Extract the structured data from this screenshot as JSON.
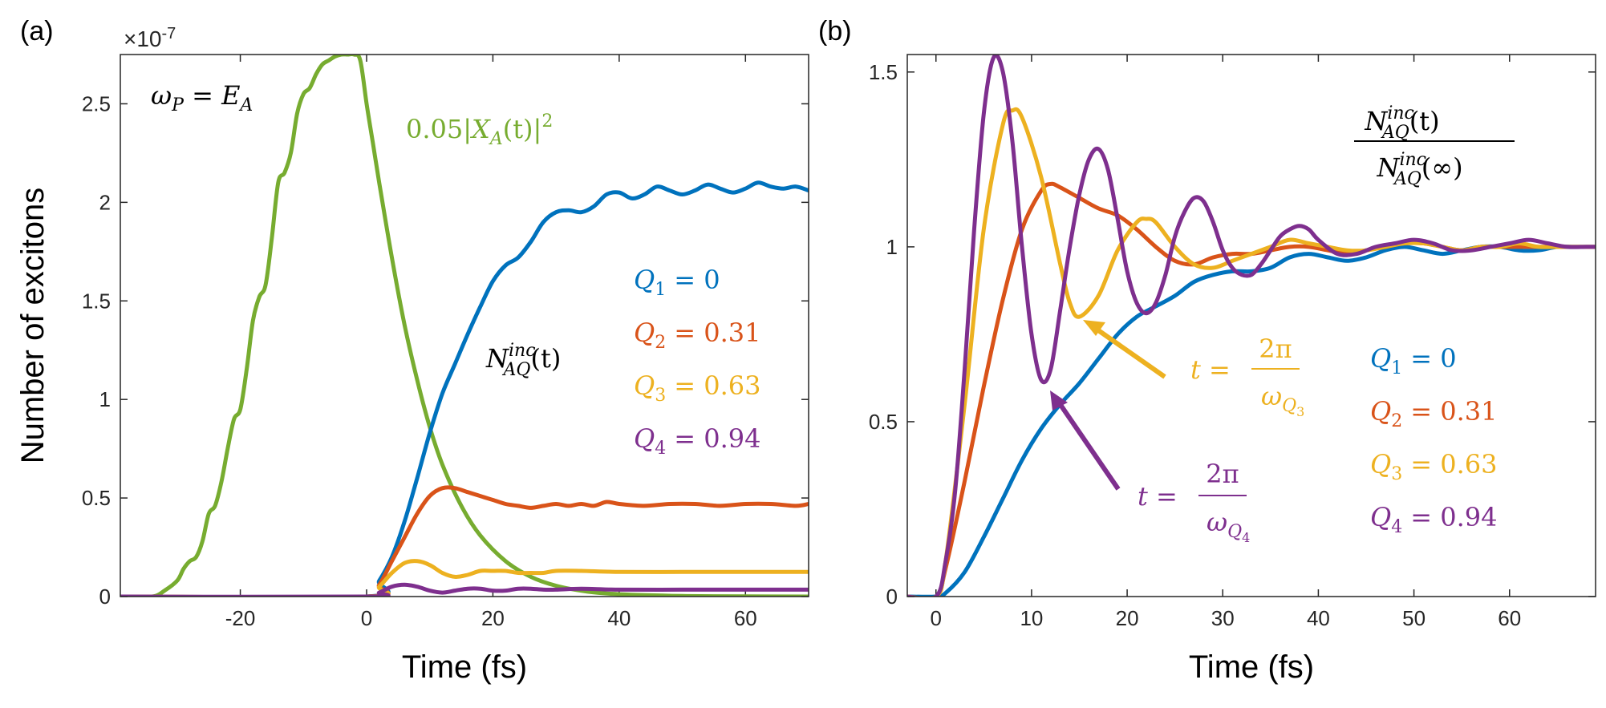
{
  "colors": {
    "blue": "#0072BD",
    "orange": "#D95319",
    "yellow": "#EDB120",
    "purple": "#7E2F8E",
    "green": "#77AC30"
  },
  "chart_data": [
    {
      "panel_label": "(a)",
      "type": "line",
      "xlabel": "Time (fs)",
      "ylabel": "Number of excitons",
      "exponent_label": "×10",
      "exponent_power": "-7",
      "xlim": [
        -39,
        70
      ],
      "ylim": [
        0,
        2.75
      ],
      "xticks": [
        -20,
        0,
        20,
        40,
        60
      ],
      "yticks": [
        0,
        0.5,
        1,
        1.5,
        2,
        2.5
      ],
      "annotations": {
        "condition": {
          "lhs": "ω",
          "lhs_sub": "P",
          "eq": " = ",
          "rhs": "E",
          "rhs_sub": "A"
        },
        "green_label": {
          "prefix": "0.05|",
          "sym": "X",
          "sub": "A",
          "mid": "(t)|",
          "sup": "2"
        },
        "n_label": {
          "sym": "N",
          "sup": "inc",
          "sub": "AQ",
          "tail": "(t)"
        }
      },
      "legend": [
        {
          "q": "Q",
          "sub": "1",
          "val": "=  0",
          "color": "#0072BD"
        },
        {
          "q": "Q",
          "sub": "2",
          "val": "= 0.31",
          "color": "#D95319"
        },
        {
          "q": "Q",
          "sub": "3",
          "val": "= 0.63",
          "color": "#EDB120"
        },
        {
          "q": "Q",
          "sub": "4",
          "val": "= 0.94",
          "color": "#7E2F8E"
        }
      ],
      "series": [
        {
          "name": "0.05|X_A(t)|^2",
          "color": "#77AC30",
          "x": [
            -39,
            -34,
            -32,
            -30,
            -29,
            -28,
            -27,
            -26,
            -25,
            -24,
            -23,
            -22,
            -21,
            -20,
            -19,
            -18,
            -17,
            -16,
            -15,
            -14,
            -13,
            -12,
            -11,
            -10,
            -9,
            -8,
            -7,
            -6,
            -5,
            -4,
            -3,
            -2,
            -1,
            0,
            1,
            2,
            4,
            6,
            8,
            10,
            12,
            15,
            18,
            22,
            26,
            30,
            35,
            40,
            50,
            60,
            70
          ],
          "y": [
            0,
            0,
            0.03,
            0.08,
            0.14,
            0.18,
            0.2,
            0.28,
            0.42,
            0.46,
            0.58,
            0.75,
            0.9,
            0.95,
            1.15,
            1.4,
            1.52,
            1.58,
            1.82,
            2.1,
            2.15,
            2.25,
            2.45,
            2.55,
            2.58,
            2.65,
            2.7,
            2.72,
            2.74,
            2.75,
            2.75,
            2.75,
            2.72,
            2.5,
            2.3,
            2.1,
            1.72,
            1.38,
            1.1,
            0.86,
            0.67,
            0.46,
            0.31,
            0.18,
            0.1,
            0.055,
            0.025,
            0.012,
            0.003,
            0.001,
            0.0
          ]
        },
        {
          "name": "Q1 = 0",
          "color": "#0072BD",
          "x": [
            -39,
            0,
            2,
            4,
            6,
            8,
            10,
            12,
            14,
            16,
            18,
            20,
            22,
            24,
            26,
            28,
            30,
            32,
            34,
            36,
            38,
            40,
            42,
            44,
            46,
            48,
            50,
            52,
            54,
            56,
            58,
            60,
            62,
            64,
            66,
            68,
            70
          ],
          "y": [
            0,
            0,
            0.08,
            0.2,
            0.38,
            0.6,
            0.83,
            1.03,
            1.18,
            1.33,
            1.47,
            1.6,
            1.68,
            1.72,
            1.8,
            1.9,
            1.95,
            1.96,
            1.95,
            1.98,
            2.04,
            2.05,
            2.02,
            2.04,
            2.08,
            2.06,
            2.04,
            2.06,
            2.09,
            2.07,
            2.05,
            2.07,
            2.1,
            2.08,
            2.07,
            2.08,
            2.06
          ]
        },
        {
          "name": "Q2 = 0.31",
          "color": "#D95319",
          "x": [
            -39,
            0,
            2,
            4,
            6,
            8,
            10,
            12,
            14,
            16,
            18,
            20,
            22,
            24,
            26,
            28,
            30,
            32,
            34,
            36,
            38,
            40,
            44,
            48,
            52,
            56,
            60,
            64,
            68,
            70
          ],
          "y": [
            0,
            0,
            0.06,
            0.18,
            0.3,
            0.42,
            0.51,
            0.55,
            0.55,
            0.53,
            0.51,
            0.49,
            0.47,
            0.46,
            0.45,
            0.46,
            0.47,
            0.46,
            0.47,
            0.46,
            0.48,
            0.47,
            0.46,
            0.47,
            0.47,
            0.46,
            0.47,
            0.47,
            0.46,
            0.47
          ]
        },
        {
          "name": "Q3 = 0.63",
          "color": "#EDB120",
          "x": [
            -39,
            0,
            2,
            4,
            6,
            8,
            10,
            12,
            14,
            16,
            18,
            20,
            22,
            24,
            26,
            28,
            30,
            34,
            40,
            50,
            60,
            70
          ],
          "y": [
            0,
            0,
            0.05,
            0.12,
            0.17,
            0.18,
            0.16,
            0.12,
            0.1,
            0.11,
            0.13,
            0.13,
            0.13,
            0.12,
            0.12,
            0.12,
            0.13,
            0.13,
            0.125,
            0.125,
            0.125,
            0.125
          ]
        },
        {
          "name": "Q4 = 0.94",
          "color": "#7E2F8E",
          "x": [
            -39,
            0,
            2,
            4,
            6,
            8,
            10,
            12,
            14,
            16,
            18,
            20,
            22,
            24,
            26,
            28,
            30,
            34,
            40,
            50,
            60,
            70
          ],
          "y": [
            0,
            0,
            0.02,
            0.05,
            0.06,
            0.05,
            0.03,
            0.02,
            0.03,
            0.04,
            0.04,
            0.03,
            0.03,
            0.04,
            0.04,
            0.035,
            0.035,
            0.04,
            0.035,
            0.035,
            0.035,
            0.035
          ]
        }
      ]
    },
    {
      "panel_label": "(b)",
      "type": "line",
      "xlabel": "Time (fs)",
      "ylabel": "",
      "xlim": [
        -3,
        69
      ],
      "ylim": [
        0,
        1.55
      ],
      "xticks": [
        0,
        10,
        20,
        30,
        40,
        50,
        60
      ],
      "yticks": [
        0,
        0.5,
        1,
        1.5
      ],
      "annotations": {
        "ratio_num": {
          "sym": "N",
          "sup": "inc",
          "sub": "AQ",
          "tail": "(t)"
        },
        "ratio_den": {
          "sym": "N",
          "sup": "inc",
          "sub": "AQ",
          "tail": "(∞)"
        },
        "arrow_q3": {
          "lhs": "t = ",
          "num": "2π",
          "den": "ω",
          "den_sub": "Q",
          "den_subsub": "3"
        },
        "arrow_q4": {
          "lhs": "t = ",
          "num": "2π",
          "den": "ω",
          "den_sub": "Q",
          "den_subsub": "4"
        }
      },
      "legend": [
        {
          "q": "Q",
          "sub": "1",
          "val": "=  0",
          "color": "#0072BD"
        },
        {
          "q": "Q",
          "sub": "2",
          "val": "= 0.31",
          "color": "#D95319"
        },
        {
          "q": "Q",
          "sub": "3",
          "val": "= 0.63",
          "color": "#EDB120"
        },
        {
          "q": "Q",
          "sub": "4",
          "val": "= 0.94",
          "color": "#7E2F8E"
        }
      ],
      "series": [
        {
          "name": "Q1 = 0",
          "color": "#0072BD",
          "x": [
            -3,
            0,
            1,
            3,
            5,
            7,
            9,
            11,
            13,
            15,
            17,
            19,
            21,
            23,
            25,
            27,
            29,
            31,
            33,
            35,
            37,
            39,
            41,
            43,
            45,
            47,
            49,
            51,
            53,
            55,
            57,
            59,
            61,
            63,
            65,
            67,
            69
          ],
          "y": [
            0,
            0,
            0.01,
            0.07,
            0.17,
            0.28,
            0.39,
            0.48,
            0.55,
            0.61,
            0.68,
            0.75,
            0.8,
            0.83,
            0.86,
            0.9,
            0.92,
            0.93,
            0.93,
            0.94,
            0.97,
            0.98,
            0.97,
            0.96,
            0.97,
            0.99,
            1.0,
            0.99,
            0.98,
            0.99,
            1.0,
            1.0,
            0.99,
            0.99,
            1.0,
            1.0,
            1.0
          ]
        },
        {
          "name": "Q2 = 0.31",
          "color": "#D95319",
          "x": [
            -3,
            0,
            1,
            3,
            5,
            7,
            9,
            11,
            12,
            13,
            15,
            17,
            19,
            21,
            23,
            25,
            27,
            29,
            31,
            33,
            35,
            37,
            39,
            41,
            43,
            45,
            47,
            49,
            51,
            53,
            55,
            57,
            59,
            61,
            63,
            65,
            67,
            69
          ],
          "y": [
            0,
            0,
            0.08,
            0.33,
            0.6,
            0.85,
            1.05,
            1.16,
            1.18,
            1.17,
            1.14,
            1.11,
            1.09,
            1.05,
            1.0,
            0.96,
            0.95,
            0.97,
            0.98,
            0.98,
            0.99,
            1.0,
            1.0,
            0.99,
            0.98,
            0.99,
            1.0,
            1.01,
            1.01,
            1.0,
            0.99,
            1.0,
            1.0,
            1.0,
            1.0,
            1.0,
            1.0,
            1.0
          ]
        },
        {
          "name": "Q3 = 0.63",
          "color": "#EDB120",
          "x": [
            -3,
            0,
            1,
            3,
            5,
            7,
            8,
            9,
            11,
            13,
            14,
            15,
            17,
            19,
            21,
            22,
            23,
            25,
            27,
            29,
            31,
            33,
            35,
            37,
            39,
            41,
            43,
            45,
            47,
            49,
            51,
            53,
            55,
            57,
            59,
            61,
            63,
            65,
            67,
            69
          ],
          "y": [
            0,
            0,
            0.1,
            0.55,
            1.05,
            1.35,
            1.39,
            1.37,
            1.2,
            0.95,
            0.84,
            0.8,
            0.86,
            0.99,
            1.07,
            1.08,
            1.07,
            1.0,
            0.95,
            0.94,
            0.96,
            0.98,
            1.0,
            1.02,
            1.01,
            1.0,
            0.99,
            0.99,
            1.0,
            1.01,
            1.01,
            1.0,
            0.99,
            1.0,
            1.0,
            1.01,
            1.0,
            1.0,
            1.0,
            1.0
          ]
        },
        {
          "name": "Q4 = 0.94",
          "color": "#7E2F8E",
          "x": [
            -3,
            0,
            1,
            2,
            3,
            4,
            5,
            6,
            7,
            8,
            9,
            10,
            11,
            12,
            13,
            14,
            15,
            16,
            17,
            18,
            19,
            20,
            21,
            22,
            23,
            24,
            25,
            26,
            27,
            28,
            29,
            30,
            31,
            32,
            33,
            34,
            35,
            36,
            37,
            38,
            39,
            40,
            42,
            44,
            46,
            48,
            50,
            52,
            54,
            56,
            58,
            60,
            62,
            64,
            66,
            68,
            69
          ],
          "y": [
            0,
            0,
            0.1,
            0.3,
            0.65,
            1.05,
            1.38,
            1.54,
            1.5,
            1.3,
            1.0,
            0.75,
            0.62,
            0.65,
            0.82,
            1.0,
            1.15,
            1.25,
            1.28,
            1.22,
            1.08,
            0.93,
            0.84,
            0.81,
            0.84,
            0.92,
            1.03,
            1.1,
            1.14,
            1.13,
            1.07,
            0.99,
            0.94,
            0.92,
            0.92,
            0.95,
            0.99,
            1.03,
            1.05,
            1.06,
            1.05,
            1.02,
            0.98,
            0.98,
            1.0,
            1.01,
            1.02,
            1.01,
            0.99,
            0.99,
            1.0,
            1.01,
            1.02,
            1.01,
            1.0,
            1.0,
            1.0
          ]
        }
      ]
    }
  ]
}
